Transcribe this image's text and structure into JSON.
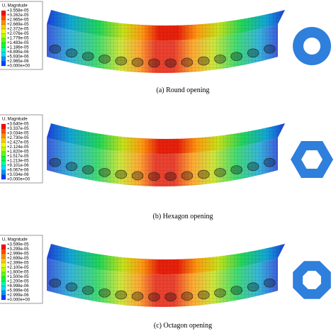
{
  "panels": [
    {
      "legend_title": "U, Magnitude",
      "legend_labels": [
        "+3.558e-05",
        "+3.262e-05",
        "+2.965e-05",
        "+2.669e-05",
        "+2.372e-05",
        "+2.076e-05",
        "+1.779e-05",
        "+1.483e-05",
        "+1.186e-05",
        "+8.895e-06",
        "+5.930e-06",
        "+2.965e-06",
        "+0.000e+00"
      ],
      "caption": "(a) Round opening"
    },
    {
      "legend_title": "U, Magnitude",
      "legend_labels": [
        "+3.640e-05",
        "+3.337e-05",
        "+3.034e-05",
        "+2.730e-05",
        "+2.427e-05",
        "+2.124e-05",
        "+1.820e-05",
        "+1.517e-05",
        "+1.213e-05",
        "+9.101e-06",
        "+6.067e-06",
        "+3.034e-06",
        "+0.000e+00"
      ],
      "caption": "(b) Hexagon opening"
    },
    {
      "legend_title": "U, Magnitude",
      "legend_labels": [
        "+3.599e-05",
        "+3.299e-05",
        "+2.999e-05",
        "+2.699e-05",
        "+2.399e-05",
        "+2.100e-05",
        "+1.800e-05",
        "+1.500e-05",
        "+1.200e-05",
        "+8.998e-06",
        "+5.999e-06",
        "+2.999e-06",
        "+0.000e+00"
      ],
      "caption": "(c) Octagon opening"
    }
  ]
}
